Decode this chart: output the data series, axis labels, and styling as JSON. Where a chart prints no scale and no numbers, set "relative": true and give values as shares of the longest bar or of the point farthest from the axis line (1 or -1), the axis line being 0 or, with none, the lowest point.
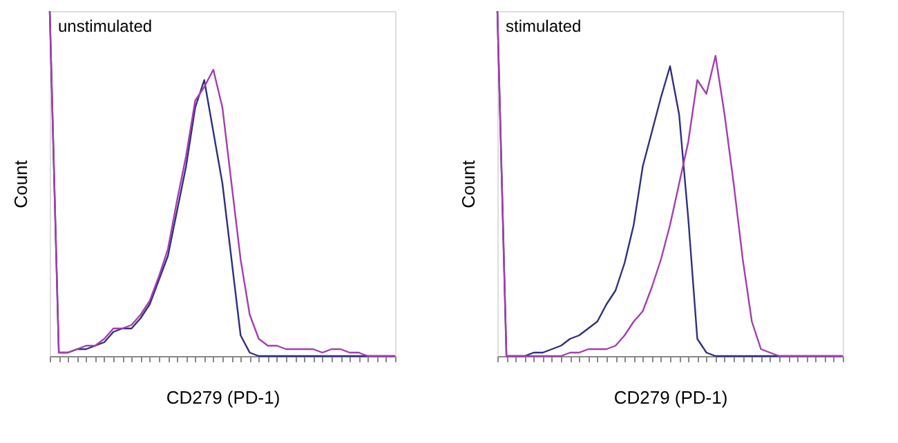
{
  "chart_data": [
    {
      "type": "line",
      "relative": true,
      "xlabel": "CD279 (PD-1)",
      "ylabel": "Count",
      "annotations": [
        "unstimulated"
      ],
      "legend": false,
      "grid": false,
      "marker": "none",
      "categories": [
        null,
        null,
        null,
        null,
        null,
        null,
        null,
        null,
        null,
        null,
        null,
        null,
        null,
        null,
        null,
        null,
        null,
        null,
        null,
        null,
        null,
        null,
        null,
        null,
        null,
        null,
        null,
        null,
        null,
        null,
        null,
        null,
        null,
        null,
        null,
        null,
        null,
        null,
        null
      ],
      "series": [
        {
          "color": "#2e2f7e",
          "values": [
            1,
            0.01,
            0.01,
            0.02,
            0.02,
            0.03,
            0.04,
            0.07,
            0.08,
            0.08,
            0.11,
            0.15,
            0.22,
            0.29,
            0.42,
            0.55,
            0.72,
            0.8,
            0.65,
            0.5,
            0.28,
            0.06,
            0.01,
            0,
            0,
            0,
            0,
            0,
            0,
            0,
            0,
            0,
            0,
            0,
            0,
            0,
            0,
            0,
            0
          ]
        },
        {
          "color": "#a33eae",
          "values": [
            1,
            0.01,
            0.01,
            0.02,
            0.03,
            0.03,
            0.05,
            0.08,
            0.08,
            0.09,
            0.12,
            0.16,
            0.23,
            0.31,
            0.45,
            0.58,
            0.74,
            0.78,
            0.83,
            0.72,
            0.5,
            0.28,
            0.12,
            0.05,
            0.03,
            0.03,
            0.02,
            0.02,
            0.02,
            0.02,
            0.01,
            0.02,
            0.02,
            0.01,
            0.01,
            0,
            0,
            0,
            0
          ]
        }
      ]
    },
    {
      "type": "line",
      "relative": true,
      "xlabel": "CD279 (PD-1)",
      "ylabel": "Count",
      "annotations": [
        "stimulated"
      ],
      "legend": false,
      "grid": false,
      "marker": "none",
      "categories": [
        null,
        null,
        null,
        null,
        null,
        null,
        null,
        null,
        null,
        null,
        null,
        null,
        null,
        null,
        null,
        null,
        null,
        null,
        null,
        null,
        null,
        null,
        null,
        null,
        null,
        null,
        null,
        null,
        null,
        null,
        null,
        null,
        null,
        null,
        null,
        null,
        null,
        null,
        null
      ],
      "series": [
        {
          "color": "#2e2f7e",
          "values": [
            1,
            0,
            0,
            0,
            0.01,
            0.01,
            0.02,
            0.03,
            0.05,
            0.06,
            0.08,
            0.1,
            0.15,
            0.19,
            0.27,
            0.38,
            0.55,
            0.65,
            0.75,
            0.84,
            0.7,
            0.4,
            0.05,
            0.01,
            0,
            0,
            0,
            0,
            0,
            0,
            0,
            0,
            0,
            0,
            0,
            0,
            0,
            0,
            0
          ]
        },
        {
          "color": "#a33eae",
          "values": [
            1,
            0,
            0,
            0,
            0,
            0,
            0,
            0,
            0.01,
            0.01,
            0.02,
            0.02,
            0.02,
            0.03,
            0.06,
            0.1,
            0.13,
            0.2,
            0.28,
            0.38,
            0.5,
            0.62,
            0.8,
            0.76,
            0.87,
            0.7,
            0.5,
            0.28,
            0.1,
            0.02,
            0.01,
            0,
            0,
            0,
            0,
            0,
            0,
            0,
            0
          ]
        }
      ]
    }
  ]
}
